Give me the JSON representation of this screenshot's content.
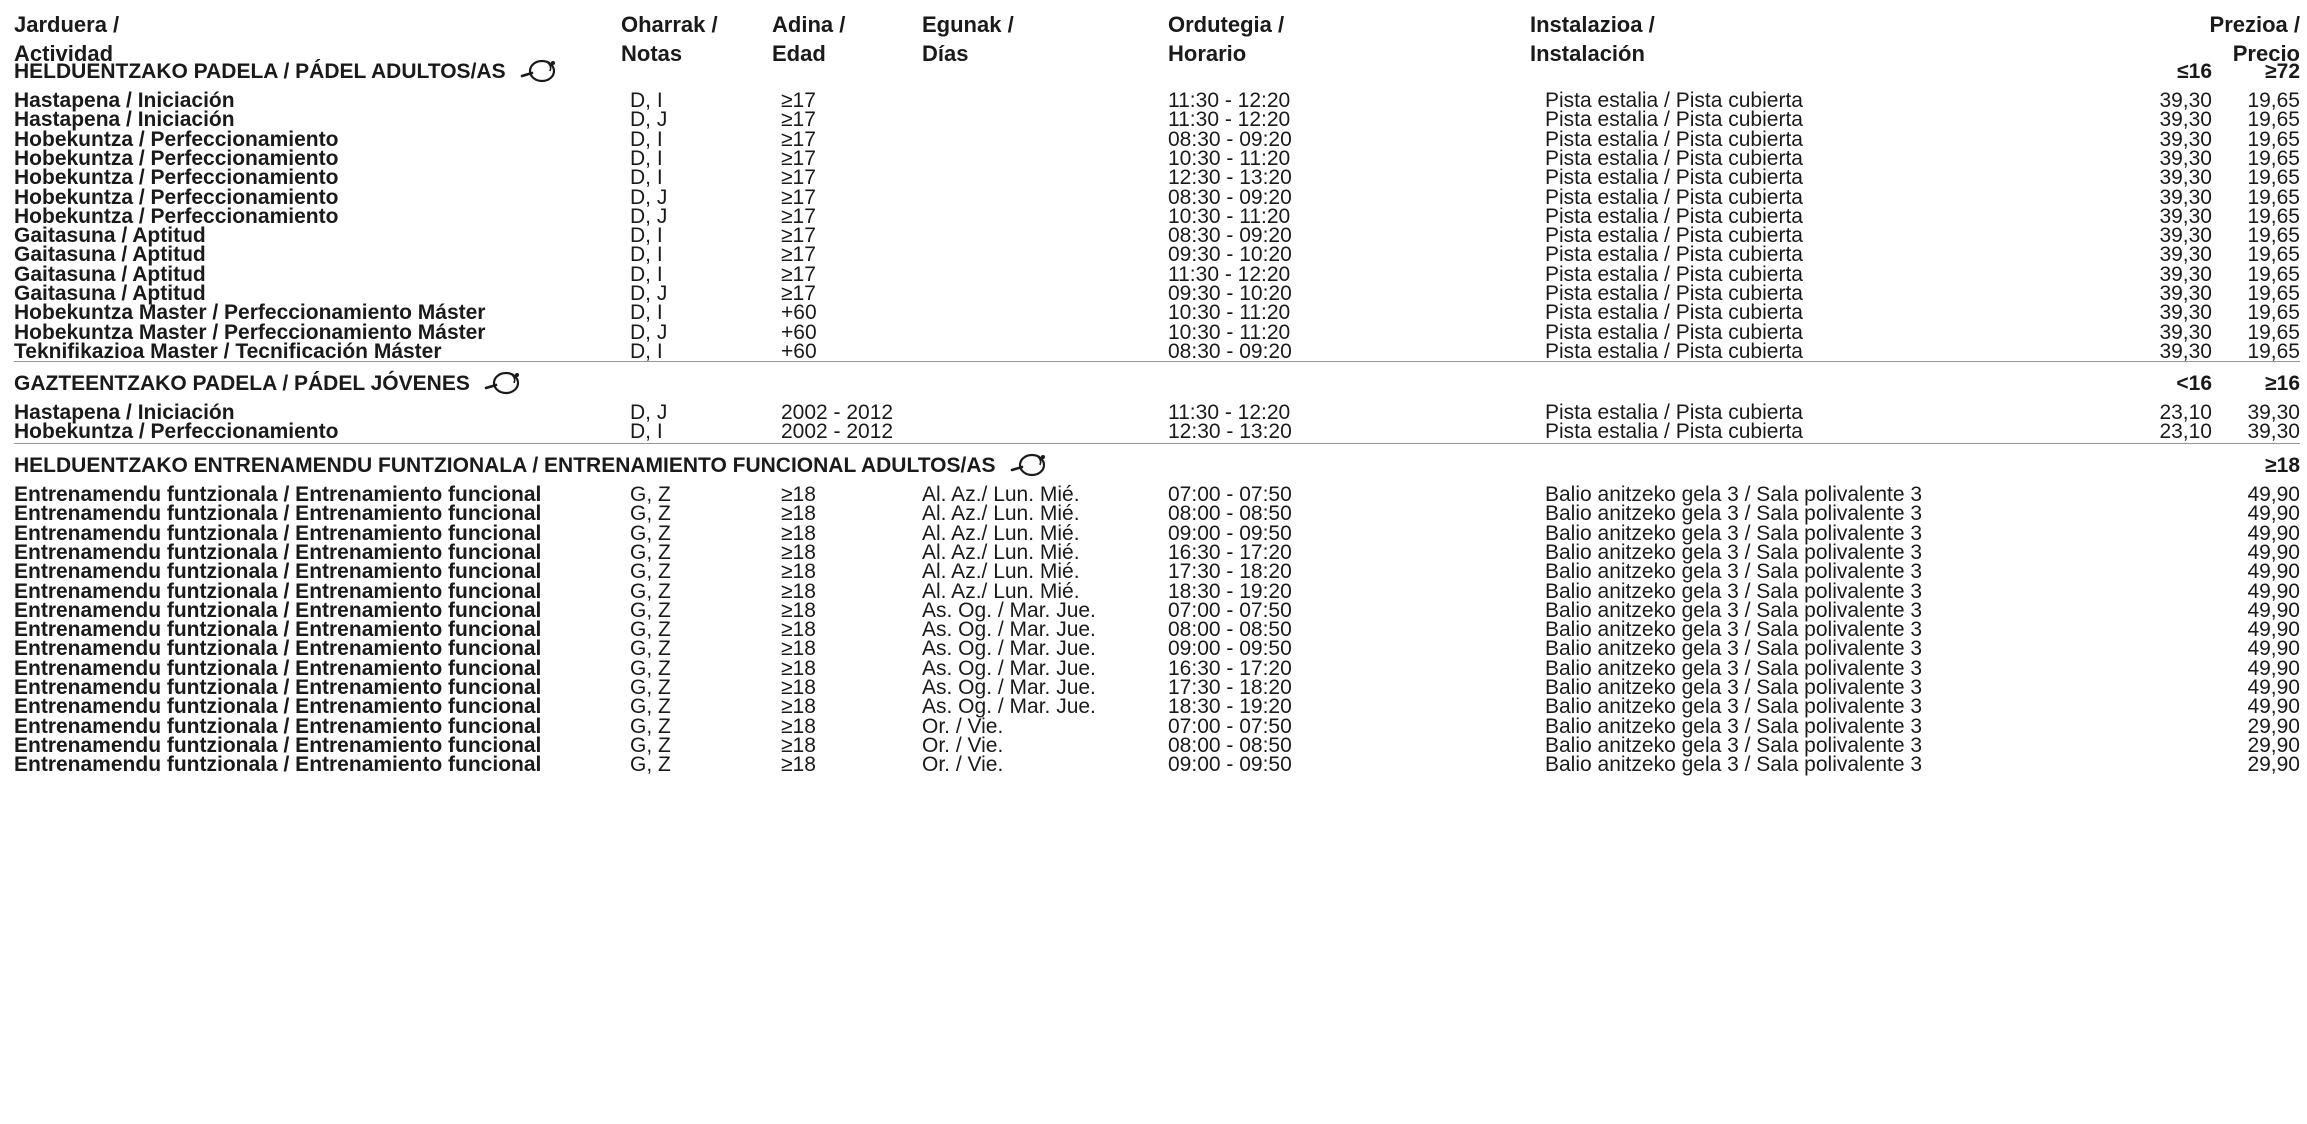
{
  "columns": {
    "activity": [
      "Jarduera /",
      "Actividad"
    ],
    "notes": [
      "Oharrak /",
      "Notas"
    ],
    "age": [
      "Adina /",
      "Edad"
    ],
    "days": [
      "Egunak /",
      "Días"
    ],
    "schedule": [
      "Ordutegia /",
      "Horario"
    ],
    "facility": [
      "Instalazioa /",
      "Instalación"
    ],
    "price": [
      "Prezioa /",
      "Precio"
    ]
  },
  "sections": [
    {
      "title": "HELDUENTZAKO PADELA / PÁDEL ADULTOS/AS",
      "price_labels": [
        "≤16",
        "≥72"
      ],
      "icon": "padel-racket-icon",
      "rows": [
        {
          "activity": "Hastapena / Iniciación",
          "notes": "D, I",
          "age": "≥17",
          "days": "",
          "hours": "11:30 - 12:20",
          "facility": "Pista estalia / Pista cubierta",
          "p1": "39,30",
          "p2": "19,65"
        },
        {
          "activity": "Hastapena / Iniciación",
          "notes": "D, J",
          "age": "≥17",
          "days": "",
          "hours": "11:30 - 12:20",
          "facility": "Pista estalia / Pista cubierta",
          "p1": "39,30",
          "p2": "19,65"
        },
        {
          "activity": "Hobekuntza / Perfeccionamiento",
          "notes": "D, I",
          "age": "≥17",
          "days": "",
          "hours": "08:30 - 09:20",
          "facility": "Pista estalia / Pista cubierta",
          "p1": "39,30",
          "p2": "19,65"
        },
        {
          "activity": "Hobekuntza / Perfeccionamiento",
          "notes": "D, I",
          "age": "≥17",
          "days": "",
          "hours": "10:30 - 11:20",
          "facility": "Pista estalia / Pista cubierta",
          "p1": "39,30",
          "p2": "19,65"
        },
        {
          "activity": "Hobekuntza / Perfeccionamiento",
          "notes": "D, I",
          "age": "≥17",
          "days": "",
          "hours": "12:30 - 13:20",
          "facility": "Pista estalia / Pista cubierta",
          "p1": "39,30",
          "p2": "19,65"
        },
        {
          "activity": "Hobekuntza / Perfeccionamiento",
          "notes": "D, J",
          "age": "≥17",
          "days": "",
          "hours": "08:30 - 09:20",
          "facility": "Pista estalia / Pista cubierta",
          "p1": "39,30",
          "p2": "19,65"
        },
        {
          "activity": "Hobekuntza / Perfeccionamiento",
          "notes": "D, J",
          "age": "≥17",
          "days": "",
          "hours": "10:30 - 11:20",
          "facility": "Pista estalia / Pista cubierta",
          "p1": "39,30",
          "p2": "19,65"
        },
        {
          "activity": "Gaitasuna / Aptitud",
          "notes": "D, I",
          "age": "≥17",
          "days": "",
          "hours": "08:30 - 09:20",
          "facility": "Pista estalia / Pista cubierta",
          "p1": "39,30",
          "p2": "19,65"
        },
        {
          "activity": "Gaitasuna / Aptitud",
          "notes": "D, I",
          "age": "≥17",
          "days": "",
          "hours": "09:30 - 10:20",
          "facility": "Pista estalia / Pista cubierta",
          "p1": "39,30",
          "p2": "19,65"
        },
        {
          "activity": "Gaitasuna / Aptitud",
          "notes": "D, I",
          "age": "≥17",
          "days": "",
          "hours": "11:30 - 12:20",
          "facility": "Pista estalia / Pista cubierta",
          "p1": "39,30",
          "p2": "19,65"
        },
        {
          "activity": "Gaitasuna / Aptitud",
          "notes": "D, J",
          "age": "≥17",
          "days": "",
          "hours": "09:30 - 10:20",
          "facility": "Pista estalia / Pista cubierta",
          "p1": "39,30",
          "p2": "19,65"
        },
        {
          "activity": "Hobekuntza Master / Perfeccionamiento Máster",
          "notes": "D, I",
          "age": "+60",
          "days": "",
          "hours": "10:30 - 11:20",
          "facility": "Pista estalia / Pista cubierta",
          "p1": "39,30",
          "p2": "19,65"
        },
        {
          "activity": "Hobekuntza Master / Perfeccionamiento Máster",
          "notes": "D, J",
          "age": "+60",
          "days": "",
          "hours": "10:30 - 11:20",
          "facility": "Pista estalia / Pista cubierta",
          "p1": "39,30",
          "p2": "19,65"
        },
        {
          "activity": "Teknifikazioa Master / Tecnificación Máster",
          "notes": "D, I",
          "age": "+60",
          "days": "",
          "hours": "08:30 - 09:20",
          "facility": "Pista estalia / Pista cubierta",
          "p1": "39,30",
          "p2": "19,65"
        }
      ]
    },
    {
      "title": "GAZTEENTZAKO PADELA / PÁDEL JÓVENES",
      "price_labels": [
        "<16",
        "≥16"
      ],
      "icon": "padel-racket-icon",
      "rows": [
        {
          "activity": "Hastapena / Iniciación",
          "notes": "D, J",
          "age": "2002 - 2012",
          "days": "",
          "hours": "11:30 - 12:20",
          "facility": "Pista estalia / Pista cubierta",
          "p1": "23,10",
          "p2": "39,30"
        },
        {
          "activity": "Hobekuntza / Perfeccionamiento",
          "notes": "D, I",
          "age": "2002 - 2012",
          "days": "",
          "hours": "12:30 - 13:20",
          "facility": "Pista estalia / Pista cubierta",
          "p1": "23,10",
          "p2": "39,30"
        }
      ]
    },
    {
      "title": "HELDUENTZAKO ENTRENAMENDU FUNTZIONALA / ENTRENAMIENTO FUNCIONAL ADULTOS/AS",
      "price_labels": [
        "",
        "≥18"
      ],
      "icon": "padel-racket-icon",
      "rows": [
        {
          "activity": "Entrenamendu funtzionala / Entrenamiento funcional",
          "notes": "G, Z",
          "age": "≥18",
          "days": "Al. Az./ Lun. Mié.",
          "hours": "07:00 - 07:50",
          "facility": "Balio anitzeko gela 3 / Sala polivalente 3",
          "p1": "",
          "p2": "49,90"
        },
        {
          "activity": "Entrenamendu funtzionala / Entrenamiento funcional",
          "notes": "G, Z",
          "age": "≥18",
          "days": "Al. Az./ Lun. Mié.",
          "hours": "08:00 - 08:50",
          "facility": "Balio anitzeko gela 3 / Sala polivalente 3",
          "p1": "",
          "p2": "49,90"
        },
        {
          "activity": "Entrenamendu funtzionala / Entrenamiento funcional",
          "notes": "G, Z",
          "age": "≥18",
          "days": "Al. Az./ Lun. Mié.",
          "hours": "09:00 - 09:50",
          "facility": "Balio anitzeko gela 3 / Sala polivalente 3",
          "p1": "",
          "p2": "49,90"
        },
        {
          "activity": "Entrenamendu funtzionala / Entrenamiento funcional",
          "notes": "G, Z",
          "age": "≥18",
          "days": "Al. Az./ Lun. Mié.",
          "hours": "16:30 - 17:20",
          "facility": "Balio anitzeko gela 3 / Sala polivalente 3",
          "p1": "",
          "p2": "49,90"
        },
        {
          "activity": "Entrenamendu funtzionala / Entrenamiento funcional",
          "notes": "G, Z",
          "age": "≥18",
          "days": "Al. Az./ Lun. Mié.",
          "hours": "17:30 - 18:20",
          "facility": "Balio anitzeko gela 3 / Sala polivalente 3",
          "p1": "",
          "p2": "49,90"
        },
        {
          "activity": "Entrenamendu funtzionala / Entrenamiento funcional",
          "notes": "G, Z",
          "age": "≥18",
          "days": "Al. Az./ Lun. Mié.",
          "hours": "18:30 - 19:20",
          "facility": "Balio anitzeko gela 3 / Sala polivalente 3",
          "p1": "",
          "p2": "49,90"
        },
        {
          "activity": "Entrenamendu funtzionala / Entrenamiento funcional",
          "notes": "G, Z",
          "age": "≥18",
          "days": "As. Og. / Mar. Jue.",
          "hours": "07:00 - 07:50",
          "facility": "Balio anitzeko gela 3 / Sala polivalente 3",
          "p1": "",
          "p2": "49,90"
        },
        {
          "activity": "Entrenamendu funtzionala / Entrenamiento funcional",
          "notes": "G, Z",
          "age": "≥18",
          "days": "As. Og. / Mar. Jue.",
          "hours": "08:00 - 08:50",
          "facility": "Balio anitzeko gela 3 / Sala polivalente 3",
          "p1": "",
          "p2": "49,90"
        },
        {
          "activity": "Entrenamendu funtzionala / Entrenamiento funcional",
          "notes": "G, Z",
          "age": "≥18",
          "days": "As. Og. / Mar. Jue.",
          "hours": "09:00 - 09:50",
          "facility": "Balio anitzeko gela 3 / Sala polivalente 3",
          "p1": "",
          "p2": "49,90"
        },
        {
          "activity": "Entrenamendu funtzionala / Entrenamiento funcional",
          "notes": "G, Z",
          "age": "≥18",
          "days": "As. Og. / Mar. Jue.",
          "hours": "16:30 - 17:20",
          "facility": "Balio anitzeko gela 3 / Sala polivalente 3",
          "p1": "",
          "p2": "49,90"
        },
        {
          "activity": "Entrenamendu funtzionala / Entrenamiento funcional",
          "notes": "G, Z",
          "age": "≥18",
          "days": "As. Og. / Mar. Jue.",
          "hours": "17:30 - 18:20",
          "facility": "Balio anitzeko gela 3 / Sala polivalente 3",
          "p1": "",
          "p2": "49,90"
        },
        {
          "activity": "Entrenamendu funtzionala / Entrenamiento funcional",
          "notes": "G, Z",
          "age": "≥18",
          "days": "As. Og. / Mar. Jue.",
          "hours": "18:30 - 19:20",
          "facility": "Balio anitzeko gela 3 / Sala polivalente 3",
          "p1": "",
          "p2": "49,90"
        },
        {
          "activity": "Entrenamendu funtzionala / Entrenamiento funcional",
          "notes": "G, Z",
          "age": "≥18",
          "days": "Or. / Vie.",
          "hours": "07:00 - 07:50",
          "facility": "Balio anitzeko gela 3 / Sala polivalente 3",
          "p1": "",
          "p2": "29,90"
        },
        {
          "activity": "Entrenamendu funtzionala / Entrenamiento funcional",
          "notes": "G, Z",
          "age": "≥18",
          "days": "Or. / Vie.",
          "hours": "08:00 - 08:50",
          "facility": "Balio anitzeko gela 3 / Sala polivalente 3",
          "p1": "",
          "p2": "29,90"
        },
        {
          "activity": "Entrenamendu funtzionala / Entrenamiento funcional",
          "notes": "G, Z",
          "age": "≥18",
          "days": "Or. / Vie.",
          "hours": "09:00 - 09:50",
          "facility": "Balio anitzeko gela 3 / Sala polivalente 3",
          "p1": "",
          "p2": "29,90"
        }
      ]
    }
  ],
  "colors": {
    "separator": "#e8747a",
    "text": "#1a1a1a"
  }
}
